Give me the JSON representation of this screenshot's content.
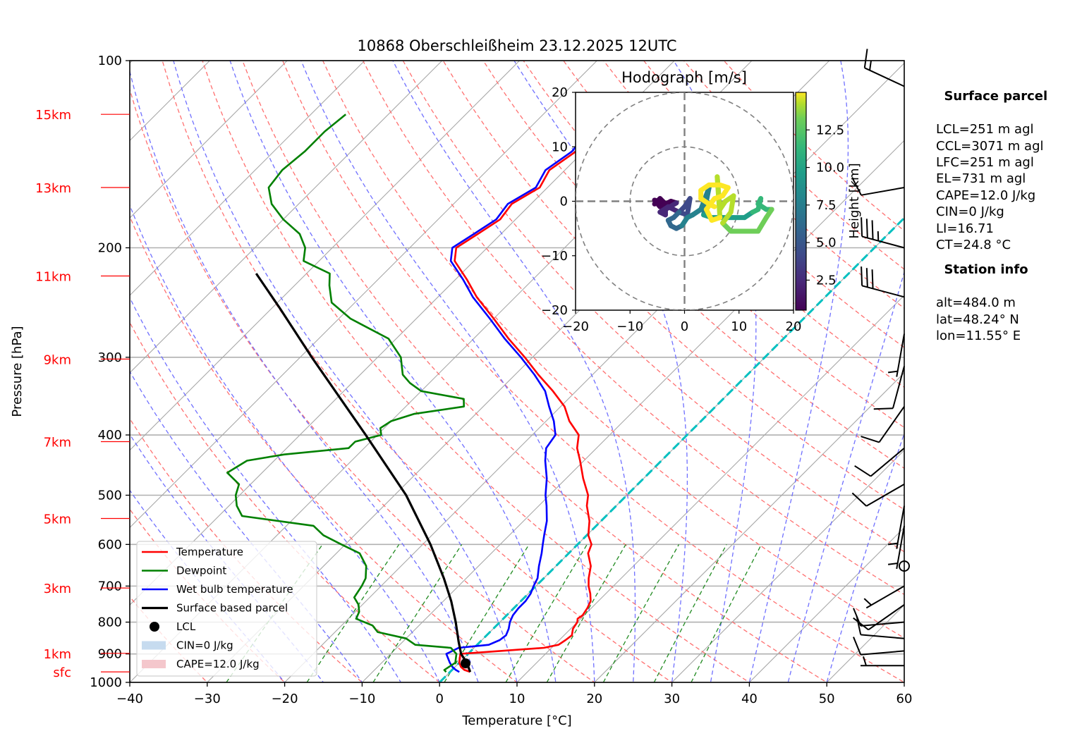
{
  "chart_data": {
    "type": "line",
    "title": "10868 Oberschleißheim 23.12.2025 12UTC",
    "xlabel": "Temperature [°C]",
    "ylabel": "Pressure [hPa]",
    "xlim": [
      -40,
      60
    ],
    "ylim": [
      1000,
      100
    ],
    "skew": 35,
    "x_ticks": [
      -40,
      -30,
      -20,
      -10,
      0,
      10,
      20,
      30,
      40,
      50,
      60
    ],
    "y_ticks": [
      100,
      200,
      300,
      400,
      500,
      600,
      700,
      800,
      900,
      1000
    ],
    "height_labels": [
      {
        "label": "15km",
        "p": 122
      },
      {
        "label": "13km",
        "p": 160
      },
      {
        "label": "11km",
        "p": 222
      },
      {
        "label": "9km",
        "p": 302
      },
      {
        "label": "7km",
        "p": 410
      },
      {
        "label": "5km",
        "p": 545
      },
      {
        "label": "3km",
        "p": 705
      },
      {
        "label": "1km",
        "p": 898
      },
      {
        "label": "sfc",
        "p": 962
      }
    ],
    "series": [
      {
        "name": "Temperature",
        "color": "#ff0000",
        "p": [
          962,
          955,
          945,
          930,
          900,
          880,
          870,
          855,
          840,
          820,
          800,
          790,
          780,
          760,
          740,
          720,
          700,
          680,
          650,
          620,
          600,
          580,
          550,
          520,
          500,
          470,
          440,
          420,
          400,
          380,
          360,
          340,
          320,
          300,
          280,
          260,
          240,
          225,
          210,
          200,
          190,
          180,
          170,
          160,
          150,
          140,
          130,
          122
        ],
        "t": [
          2.6,
          1.6,
          0.8,
          0.0,
          -1.0,
          9.0,
          10.5,
          10.8,
          11.0,
          10.3,
          10.0,
          9.6,
          9.8,
          9.5,
          9.0,
          8.0,
          6.8,
          5.8,
          4.5,
          2.5,
          1.8,
          0.2,
          -1.5,
          -3.8,
          -5.0,
          -7.8,
          -10.5,
          -12.5,
          -14.0,
          -17.0,
          -19.5,
          -23.0,
          -27.0,
          -31.0,
          -35.5,
          -40.0,
          -45.0,
          -48.5,
          -52.5,
          -54.0,
          -53.0,
          -52.0,
          -52.5,
          -51.0,
          -52.0,
          -51.0,
          -51.5,
          -50.5
        ]
      },
      {
        "name": "Dewpoint",
        "color": "#008000",
        "p": [
          962,
          955,
          945,
          930,
          900,
          880,
          870,
          850,
          830,
          810,
          790,
          770,
          750,
          730,
          700,
          680,
          650,
          620,
          600,
          580,
          560,
          540,
          520,
          500,
          480,
          460,
          440,
          430,
          420,
          410,
          400,
          390,
          380,
          370,
          360,
          350,
          340,
          330,
          320,
          300,
          280,
          260,
          245,
          230,
          220,
          210,
          200,
          190,
          180,
          170,
          160,
          150,
          140,
          130,
          122
        ],
        "t": [
          -0.5,
          -1.0,
          -0.8,
          -0.5,
          -1.5,
          -3.0,
          -8.0,
          -10.0,
          -14.5,
          -16.0,
          -19.0,
          -19.5,
          -20.5,
          -22.0,
          -22.5,
          -23.0,
          -24.5,
          -27.0,
          -30.5,
          -34.0,
          -36.5,
          -47.0,
          -49.0,
          -50.5,
          -51.5,
          -54.5,
          -53.5,
          -49.5,
          -42.0,
          -42.0,
          -39.5,
          -40.5,
          -40.0,
          -38.0,
          -32.5,
          -33.5,
          -40.0,
          -42.5,
          -44.5,
          -47.0,
          -51.0,
          -58.5,
          -63.0,
          -65.5,
          -67.0,
          -72.0,
          -73.5,
          -76.0,
          -80.0,
          -83.5,
          -86.0,
          -86.5,
          -86.0,
          -86.0,
          -85.5
        ]
      },
      {
        "name": "Wet bulb temperature",
        "color": "#0000ff",
        "p": [
          962,
          955,
          945,
          930,
          900,
          880,
          870,
          855,
          840,
          820,
          800,
          780,
          760,
          740,
          720,
          700,
          680,
          650,
          620,
          600,
          580,
          550,
          520,
          500,
          470,
          440,
          420,
          400,
          380,
          360,
          340,
          320,
          300,
          280,
          260,
          240,
          225,
          210,
          200,
          190,
          180,
          170,
          160,
          150,
          140,
          130,
          122
        ],
        "t": [
          1.2,
          0.5,
          -0.3,
          -1.2,
          -2.8,
          -2.0,
          1.5,
          2.3,
          2.5,
          2.0,
          1.3,
          0.8,
          0.6,
          0.6,
          0.3,
          -0.3,
          -0.8,
          -2.2,
          -3.5,
          -4.5,
          -5.5,
          -7.0,
          -9.0,
          -10.5,
          -12.5,
          -15.0,
          -16.5,
          -17.0,
          -19.0,
          -21.5,
          -24.0,
          -27.5,
          -31.5,
          -36.0,
          -40.5,
          -45.5,
          -49.0,
          -53.0,
          -54.5,
          -53.5,
          -52.5,
          -53.0,
          -51.5,
          -52.5,
          -51.5,
          -52.0,
          -51.0
        ]
      },
      {
        "name": "Surface based parcel",
        "color": "#000000",
        "p": [
          962,
          930,
          900,
          860,
          800,
          740,
          680,
          600,
          500,
          400,
          300,
          250,
          220
        ],
        "t": [
          2.6,
          1.0,
          -0.9,
          -2.8,
          -5.7,
          -9.0,
          -12.9,
          -19.0,
          -28.5,
          -41.5,
          -58.5,
          -69.0,
          -76.5
        ]
      }
    ],
    "lcl": {
      "name": "LCL",
      "p": 932,
      "t": 0.9
    },
    "freezing_line": {
      "t": 0,
      "color": "#00c0c0"
    },
    "legend": {
      "position": "lower-left",
      "items": [
        {
          "label": "Temperature",
          "kind": "line",
          "color": "#ff0000"
        },
        {
          "label": "Dewpoint",
          "kind": "line",
          "color": "#008000"
        },
        {
          "label": "Wet bulb temperature",
          "kind": "line",
          "color": "#0000ff"
        },
        {
          "label": "Surface based parcel",
          "kind": "line",
          "color": "#000000"
        },
        {
          "label": "LCL",
          "kind": "marker",
          "color": "#000000"
        },
        {
          "label": "CIN=0 J/kg",
          "kind": "patch",
          "color": "#c6dbef"
        },
        {
          "label": "CAPE=12.0 J/kg",
          "kind": "patch",
          "color": "#f4c7cc"
        }
      ]
    },
    "dry_adiabats_theta_c": [
      -30,
      -20,
      -10,
      0,
      10,
      20,
      30,
      40,
      50,
      60,
      70,
      80,
      90,
      100,
      110,
      120,
      130,
      140,
      150,
      160,
      170
    ],
    "moist_adiabats_t_c": [
      -20,
      -15,
      -10,
      -5,
      0,
      5,
      10,
      15,
      20,
      25,
      30,
      35,
      40,
      45,
      50
    ],
    "mixing_ratios_gkg": [
      0.4,
      1,
      2,
      4,
      7,
      10,
      16,
      24,
      32
    ],
    "wind_barbs": {
      "units": "kt",
      "levels": [
        {
          "p": 110,
          "dir": 295,
          "spd": 15
        },
        {
          "p": 160,
          "dir": 260,
          "spd": 10
        },
        {
          "p": 200,
          "dir": 285,
          "spd": 35
        },
        {
          "p": 240,
          "dir": 285,
          "spd": 30
        },
        {
          "p": 275,
          "dir": 190,
          "spd": 5
        },
        {
          "p": 310,
          "dir": 195,
          "spd": 10
        },
        {
          "p": 360,
          "dir": 215,
          "spd": 10
        },
        {
          "p": 420,
          "dir": 230,
          "spd": 10
        },
        {
          "p": 480,
          "dir": 240,
          "spd": 10
        },
        {
          "p": 520,
          "dir": 190,
          "spd": 5
        },
        {
          "p": 560,
          "dir": 190,
          "spd": 5
        },
        {
          "p": 650,
          "dir": 0,
          "spd": 0
        },
        {
          "p": 700,
          "dir": 240,
          "spd": 5
        },
        {
          "p": 750,
          "dir": 235,
          "spd": 10
        },
        {
          "p": 800,
          "dir": 265,
          "spd": 10
        },
        {
          "p": 850,
          "dir": 275,
          "spd": 10
        },
        {
          "p": 890,
          "dir": 265,
          "spd": 10
        },
        {
          "p": 940,
          "dir": 270,
          "spd": 5
        }
      ]
    },
    "hodograph": {
      "title": "Hodograph [m/s]",
      "xlim": [
        -20,
        20
      ],
      "ylim": [
        -20,
        20
      ],
      "ticks": [
        -20,
        -10,
        0,
        10,
        20
      ],
      "rings": [
        10,
        20
      ],
      "colorbar": {
        "label": "Height [km]",
        "range": [
          0.5,
          15
        ],
        "ticks": [
          2.5,
          5.0,
          7.5,
          10.0,
          12.5
        ],
        "colormap": "viridis"
      },
      "points": [
        {
          "u": -5.5,
          "v": -0.5,
          "h": 0.5
        },
        {
          "u": -4.5,
          "v": 0.5,
          "h": 0.8
        },
        {
          "u": -3.5,
          "v": -0.5,
          "h": 1.0
        },
        {
          "u": -5.5,
          "v": 0.2,
          "h": 1.3
        },
        {
          "u": -4.5,
          "v": -1.0,
          "h": 1.6
        },
        {
          "u": -2.5,
          "v": 0.0,
          "h": 1.9
        },
        {
          "u": -1.5,
          "v": -0.3,
          "h": 2.2
        },
        {
          "u": -3.5,
          "v": -1.5,
          "h": 2.5
        },
        {
          "u": -3.5,
          "v": -2.5,
          "h": 2.8
        },
        {
          "u": -4.5,
          "v": -2.0,
          "h": 3.1
        },
        {
          "u": -3.0,
          "v": -1.0,
          "h": 3.4
        },
        {
          "u": -1.0,
          "v": -2.0,
          "h": 3.7
        },
        {
          "u": 0.0,
          "v": -1.0,
          "h": 4.0
        },
        {
          "u": 1.0,
          "v": 0.5,
          "h": 4.3
        },
        {
          "u": 0.5,
          "v": -2.5,
          "h": 4.6
        },
        {
          "u": -1.0,
          "v": -2.0,
          "h": 4.9
        },
        {
          "u": -2.0,
          "v": -3.0,
          "h": 5.2
        },
        {
          "u": -3.0,
          "v": -3.5,
          "h": 5.5
        },
        {
          "u": -2.5,
          "v": -4.5,
          "h": 5.8
        },
        {
          "u": -1.5,
          "v": -5.0,
          "h": 6.1
        },
        {
          "u": -0.5,
          "v": -4.5,
          "h": 6.4
        },
        {
          "u": 0.5,
          "v": -3.0,
          "h": 6.7
        },
        {
          "u": 1.5,
          "v": -2.5,
          "h": 7.0
        },
        {
          "u": 3.0,
          "v": -1.5,
          "h": 7.3
        },
        {
          "u": 4.5,
          "v": 2.5,
          "h": 7.6
        },
        {
          "u": 3.5,
          "v": -2.5,
          "h": 7.9
        },
        {
          "u": 5.0,
          "v": -3.0,
          "h": 8.2
        },
        {
          "u": 7.0,
          "v": -3.0,
          "h": 8.5
        },
        {
          "u": 9.0,
          "v": -3.0,
          "h": 8.8
        },
        {
          "u": 11.0,
          "v": -3.0,
          "h": 9.1
        },
        {
          "u": 12.5,
          "v": -2.0,
          "h": 9.4
        },
        {
          "u": 13.5,
          "v": -1.5,
          "h": 9.7
        },
        {
          "u": 14.0,
          "v": 0.5,
          "h": 10.0
        },
        {
          "u": 13.5,
          "v": -0.5,
          "h": 10.3
        },
        {
          "u": 15.0,
          "v": -1.5,
          "h": 10.6
        },
        {
          "u": 16.0,
          "v": -1.5,
          "h": 10.9
        },
        {
          "u": 15.0,
          "v": -3.0,
          "h": 11.2
        },
        {
          "u": 13.5,
          "v": -5.5,
          "h": 11.5
        },
        {
          "u": 11.0,
          "v": -5.5,
          "h": 11.8
        },
        {
          "u": 8.5,
          "v": -5.5,
          "h": 12.1
        },
        {
          "u": 7.0,
          "v": -4.0,
          "h": 12.4
        },
        {
          "u": 8.5,
          "v": -2.0,
          "h": 12.7
        },
        {
          "u": 9.0,
          "v": 1.0,
          "h": 13.0
        },
        {
          "u": 7.5,
          "v": 0.0,
          "h": 13.1
        },
        {
          "u": 6.5,
          "v": -1.5,
          "h": 13.3
        },
        {
          "u": 6.0,
          "v": 4.5,
          "h": 13.5
        },
        {
          "u": 6.5,
          "v": -3.0,
          "h": 13.7
        },
        {
          "u": 5.0,
          "v": -3.5,
          "h": 13.9
        },
        {
          "u": 4.0,
          "v": -1.5,
          "h": 14.1
        },
        {
          "u": 5.5,
          "v": 0.5,
          "h": 14.3
        },
        {
          "u": 7.0,
          "v": 1.0,
          "h": 14.4
        },
        {
          "u": 8.0,
          "v": 2.5,
          "h": 14.5
        },
        {
          "u": 6.5,
          "v": 3.0,
          "h": 14.6
        },
        {
          "u": 4.5,
          "v": 3.0,
          "h": 14.7
        },
        {
          "u": 3.0,
          "v": 2.0,
          "h": 14.8
        },
        {
          "u": 3.0,
          "v": 0.5,
          "h": 14.85
        },
        {
          "u": 4.5,
          "v": -0.5,
          "h": 14.9
        },
        {
          "u": 5.5,
          "v": -1.0,
          "h": 14.95
        }
      ]
    }
  },
  "info": {
    "surface_parcel": {
      "heading": "Surface parcel",
      "lines": [
        "LCL=251 m agl",
        "CCL=3071 m agl",
        "LFC=251 m agl",
        "EL=731 m agl",
        "CAPE=12.0 J/kg",
        "CIN=0 J/kg",
        "LI=16.71",
        "CT=24.8 °C"
      ]
    },
    "station": {
      "heading": "Station info",
      "lines": [
        "alt=484.0 m",
        "lat=48.24° N",
        "lon=11.55° E"
      ]
    }
  }
}
